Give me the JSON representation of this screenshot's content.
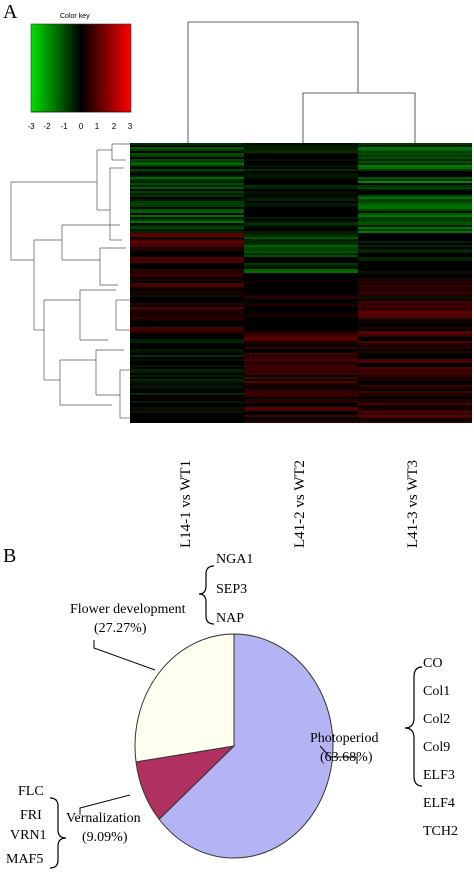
{
  "panel_a": {
    "letter": "A",
    "color_key": {
      "title": "Color key",
      "ticks": [
        "-3",
        "-2",
        "-1",
        "0",
        "1",
        "2",
        "3"
      ],
      "colors": {
        "low": "#00e000",
        "mid": "#000000",
        "high": "#ff0000"
      }
    },
    "columns": [
      "L14-1 vs WT1",
      "L41-2 vs WT2",
      "L41-3 vs WT3"
    ]
  },
  "panel_b": {
    "letter": "B",
    "chart_data": {
      "type": "pie",
      "slices": [
        {
          "label": "Photoperiod",
          "percent_label": "(63.68%)",
          "value": 63.68,
          "color": "#b4b4f4",
          "genes": [
            "CO",
            "Col1",
            "Col2",
            "Col9",
            "ELF3",
            "ELF4",
            "TCH2"
          ]
        },
        {
          "label": "Vernalization",
          "percent_label": "(9.09%)",
          "value": 9.09,
          "color": "#b03060",
          "genes": [
            "FLC",
            "FRI",
            "VRN1",
            "MAF5"
          ]
        },
        {
          "label": "Flower development",
          "percent_label": "(27.27%)",
          "value": 27.27,
          "color": "#fffff0",
          "genes": [
            "NGA1",
            "SEP3",
            "NAP"
          ]
        }
      ]
    }
  }
}
